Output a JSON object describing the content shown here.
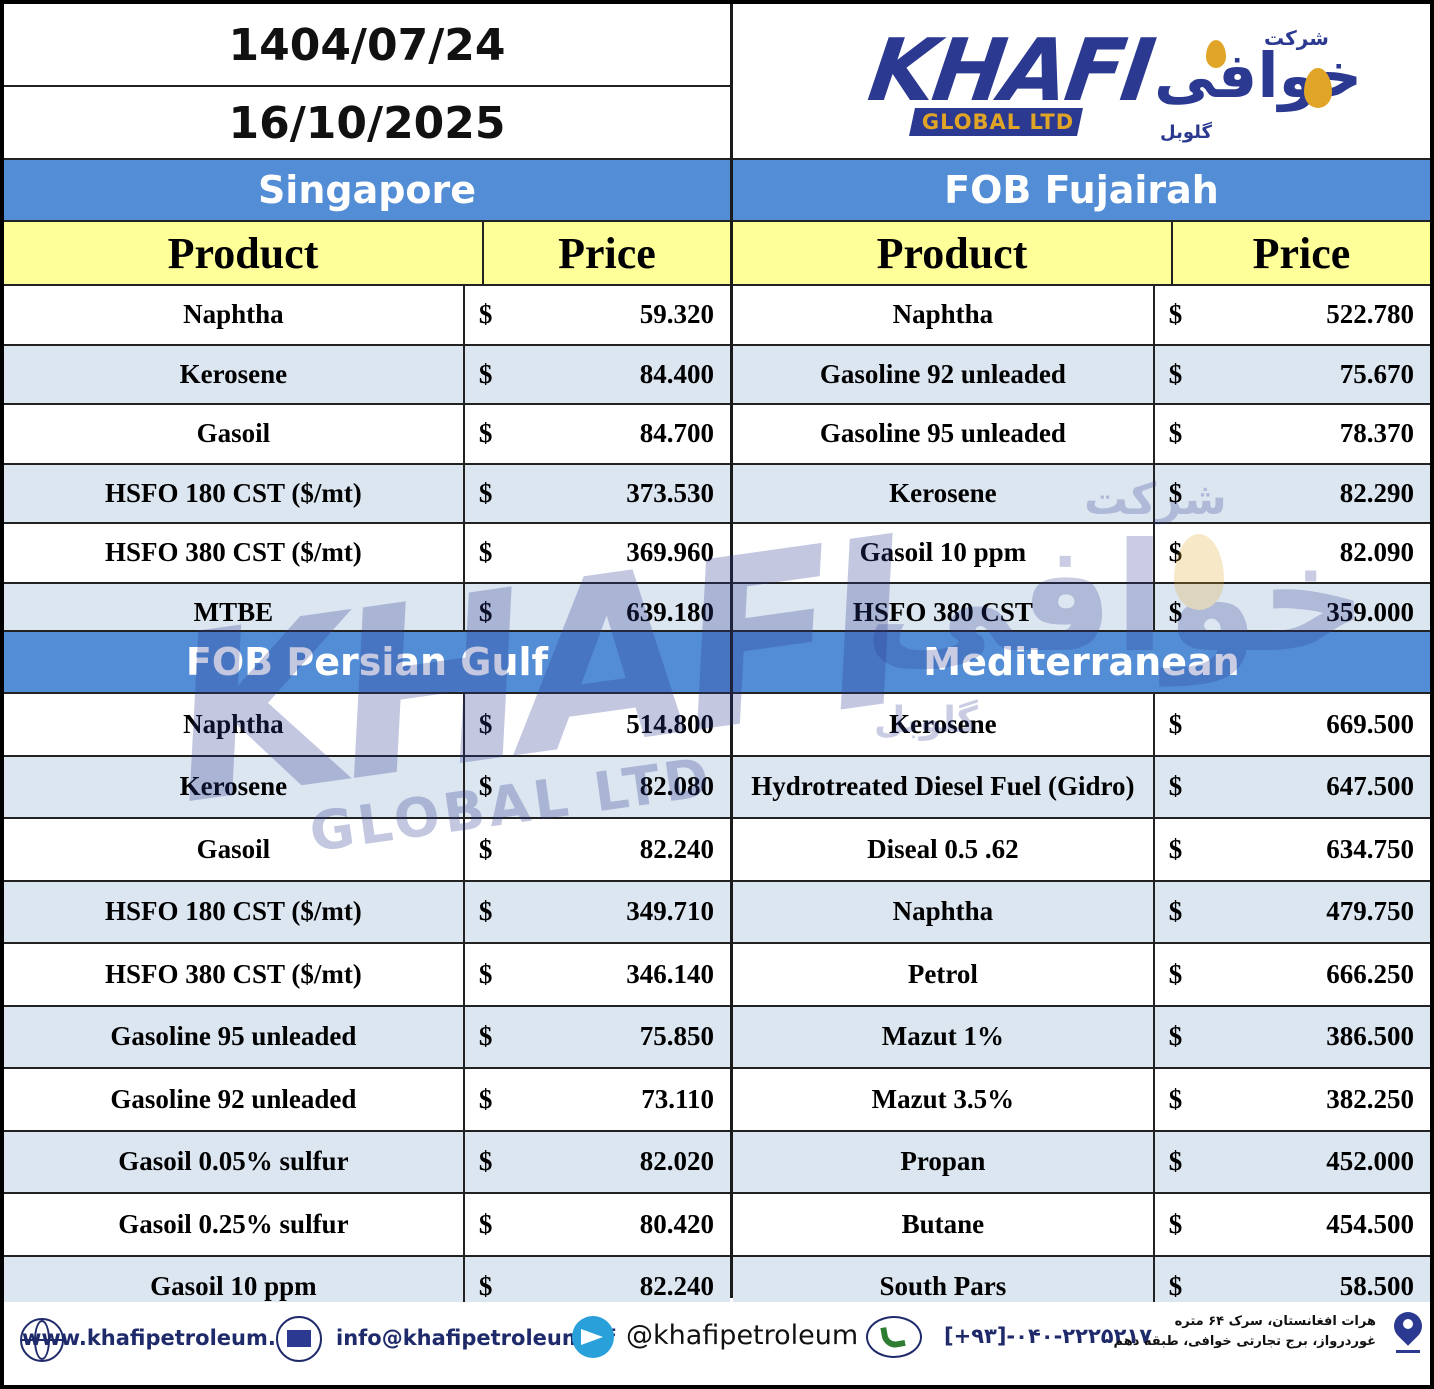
{
  "header": {
    "date_persian": "1404/07/24",
    "date_gregorian": "16/10/2025",
    "logo_text": "KHAFI",
    "logo_sub": "GLOBAL LTD",
    "logo_fa_top": "شرکت",
    "logo_fa_main": "خوافی",
    "logo_fa_sub": "گلوبل"
  },
  "col_labels": {
    "product": "Product",
    "price": "Price"
  },
  "currency": "$",
  "singapore": {
    "title": "Singapore",
    "rows": [
      {
        "product": "Naphtha",
        "price": "59.320"
      },
      {
        "product": "Kerosene",
        "price": "84.400"
      },
      {
        "product": "Gasoil",
        "price": "84.700"
      },
      {
        "product": "HSFO 180 CST ($/mt)",
        "price": "373.530"
      },
      {
        "product": "HSFO 380 CST ($/mt)",
        "price": "369.960"
      },
      {
        "product": "MTBE",
        "price": "639.180"
      }
    ]
  },
  "fujairah": {
    "title": "FOB Fujairah",
    "rows": [
      {
        "product": "Naphtha",
        "price": "522.780"
      },
      {
        "product": "Gasoline 92 unleaded",
        "price": "75.670"
      },
      {
        "product": "Gasoline 95 unleaded",
        "price": "78.370"
      },
      {
        "product": "Kerosene",
        "price": "82.290"
      },
      {
        "product": "Gasoil 10 ppm",
        "price": "82.090"
      },
      {
        "product": "HSFO 380 CST",
        "price": "359.000"
      }
    ]
  },
  "persian_gulf": {
    "title": "FOB Persian Gulf",
    "rows": [
      {
        "product": "Naphtha",
        "price": "514.800"
      },
      {
        "product": "Kerosene",
        "price": "82.080"
      },
      {
        "product": "Gasoil",
        "price": "82.240"
      },
      {
        "product": "HSFO 180 CST ($/mt)",
        "price": "349.710"
      },
      {
        "product": "HSFO 380 CST ($/mt)",
        "price": "346.140"
      },
      {
        "product": "Gasoline 95 unleaded",
        "price": "75.850"
      },
      {
        "product": "Gasoline 92 unleaded",
        "price": "73.110"
      },
      {
        "product": "Gasoil 0.05% sulfur",
        "price": "82.020"
      },
      {
        "product": "Gasoil 0.25% sulfur",
        "price": "80.420"
      },
      {
        "product": "Gasoil 10 ppm",
        "price": "82.240"
      }
    ]
  },
  "mediterranean": {
    "title": "Mediterranean",
    "rows": [
      {
        "product": "Kerosene",
        "price": "669.500"
      },
      {
        "product": "Hydrotreated Diesel Fuel (Gidro)",
        "price": "647.500"
      },
      {
        "product": "Diseal 0.5 .62",
        "price": "634.750"
      },
      {
        "product": "Naphtha",
        "price": "479.750"
      },
      {
        "product": "Petrol",
        "price": "666.250"
      },
      {
        "product": "Mazut 1%",
        "price": "386.500"
      },
      {
        "product": "Mazut 3.5%",
        "price": "382.250"
      },
      {
        "product": "Propan",
        "price": "452.000"
      },
      {
        "product": "Butane",
        "price": "454.500"
      },
      {
        "product": "South Pars",
        "price": "58.500"
      }
    ]
  },
  "footer": {
    "website": "www.khafipetroleum.af",
    "email": "info@khafipetroleum.af",
    "telegram": "@khafipetroleum",
    "phone": "[+۹۳]-۰۴۰-۲۲۲۵۲۱۷",
    "address_line1": "هرات افغانستان، سرک ۶۴ متره",
    "address_line2": "غوردرواز، برج تجارتی خوافی، طبقه دهم"
  },
  "colors": {
    "section_blue": "#538dd5",
    "header_yellow": "#ffff99",
    "row_alt": "#dce6f1",
    "logo_blue": "#2b3990",
    "logo_gold": "#e0a526"
  }
}
